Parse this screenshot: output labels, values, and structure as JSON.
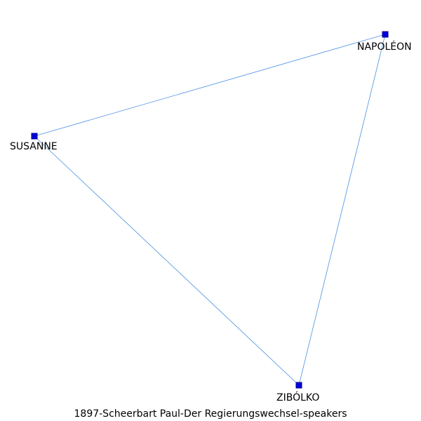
{
  "graph": {
    "title": "1897-Scheerbart_Paul-Der_Regierungswechsel-speakers",
    "node_color": "#0000dd",
    "edge_color": "#4a90e2",
    "nodes": [
      {
        "id": "napoleon",
        "label": "NAPOLÉON"
      },
      {
        "id": "susanne",
        "label": "SUSANNE"
      },
      {
        "id": "zibolko",
        "label": "ZIBÓLKO"
      }
    ],
    "edges": [
      {
        "source": "susanne",
        "target": "napoleon"
      },
      {
        "source": "napoleon",
        "target": "zibolko"
      },
      {
        "source": "susanne",
        "target": "zibolko"
      }
    ]
  }
}
